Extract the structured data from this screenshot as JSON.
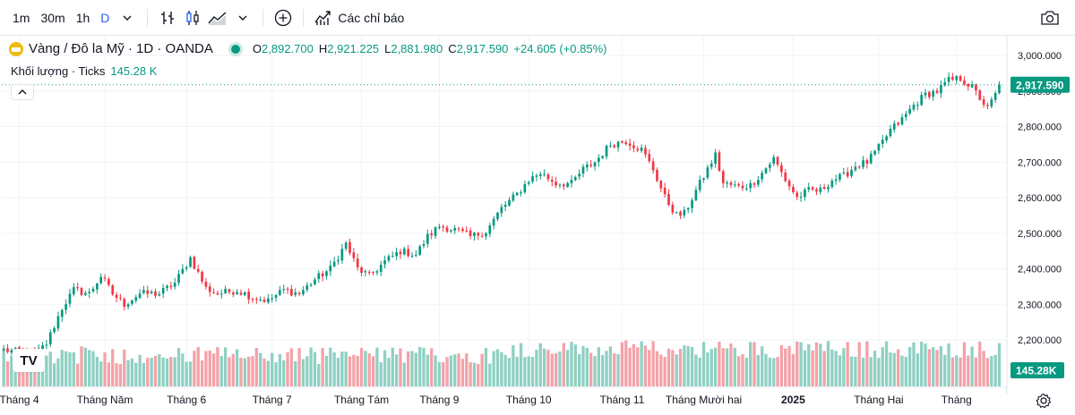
{
  "toolbar": {
    "intervals": [
      "1m",
      "30m",
      "1h",
      "D"
    ],
    "active_interval": "D",
    "indicators_label": "Các chỉ báo"
  },
  "legend": {
    "title": "Vàng / Đô la Mỹ · 1D · OANDA",
    "o_key": "O",
    "o_val": "2,892.700",
    "h_key": "H",
    "h_val": "2,921.225",
    "l_key": "L",
    "l_val": "2,881.980",
    "c_key": "C",
    "c_val": "2,917.590",
    "change": "+24.605 (+0.85%)",
    "volume_label": "Khối lượng · Ticks",
    "volume_value": "145.28 K"
  },
  "logo_text": "TV",
  "colors": {
    "up": "#089981",
    "down": "#f23645",
    "vol_up": "#8fd0c3",
    "vol_down": "#f3a2a8",
    "grid": "#f0f3fa",
    "last_badge": "#089981"
  },
  "chart_data": {
    "type": "candlestick",
    "y_ticks": [
      "3,000.000",
      "2,900.000",
      "2,800.000",
      "2,700.000",
      "2,600.000",
      "2,500.000",
      "2,400.000",
      "2,300.000",
      "2,200.000"
    ],
    "y_tick_values": [
      3000,
      2900,
      2800,
      2700,
      2600,
      2500,
      2400,
      2300,
      2200
    ],
    "x_labels": [
      "Tháng 4",
      "Tháng Năm",
      "Tháng 6",
      "Tháng 7",
      "Tháng Tám",
      "Tháng 9",
      "Tháng 10",
      "Tháng 11",
      "Tháng Mười hai",
      "2025",
      "Tháng Hai",
      "Tháng"
    ],
    "x_label_bold": [
      false,
      false,
      false,
      false,
      false,
      false,
      false,
      false,
      false,
      true,
      false,
      false
    ],
    "x_label_day_index": [
      4,
      26,
      47,
      69,
      92,
      112,
      135,
      159,
      180,
      203,
      225,
      245
    ],
    "last_price": 2917.59,
    "last_price_label": "2,917.590",
    "last_volume_label": "145.28K",
    "anchors": [
      [
        0,
        2172
      ],
      [
        8,
        2158
      ],
      [
        11,
        2190
      ],
      [
        15,
        2290
      ],
      [
        18,
        2340
      ],
      [
        22,
        2330
      ],
      [
        25,
        2380
      ],
      [
        28,
        2330
      ],
      [
        31,
        2300
      ],
      [
        35,
        2330
      ],
      [
        40,
        2330
      ],
      [
        44,
        2360
      ],
      [
        48,
        2430
      ],
      [
        52,
        2345
      ],
      [
        55,
        2330
      ],
      [
        60,
        2340
      ],
      [
        64,
        2320
      ],
      [
        68,
        2310
      ],
      [
        72,
        2340
      ],
      [
        76,
        2330
      ],
      [
        80,
        2370
      ],
      [
        84,
        2400
      ],
      [
        88,
        2470
      ],
      [
        91,
        2400
      ],
      [
        94,
        2380
      ],
      [
        98,
        2420
      ],
      [
        102,
        2450
      ],
      [
        106,
        2440
      ],
      [
        109,
        2490
      ],
      [
        112,
        2520
      ],
      [
        116,
        2510
      ],
      [
        120,
        2490
      ],
      [
        124,
        2505
      ],
      [
        128,
        2570
      ],
      [
        132,
        2610
      ],
      [
        135,
        2650
      ],
      [
        138,
        2670
      ],
      [
        142,
        2640
      ],
      [
        146,
        2640
      ],
      [
        149,
        2680
      ],
      [
        152,
        2700
      ],
      [
        156,
        2750
      ],
      [
        160,
        2760
      ],
      [
        164,
        2735
      ],
      [
        167,
        2680
      ],
      [
        170,
        2600
      ],
      [
        173,
        2550
      ],
      [
        175,
        2555
      ],
      [
        178,
        2620
      ],
      [
        181,
        2680
      ],
      [
        183,
        2720
      ],
      [
        185,
        2640
      ],
      [
        189,
        2630
      ],
      [
        192,
        2635
      ],
      [
        195,
        2670
      ],
      [
        198,
        2710
      ],
      [
        201,
        2650
      ],
      [
        204,
        2600
      ],
      [
        207,
        2620
      ],
      [
        210,
        2620
      ],
      [
        213,
        2650
      ],
      [
        216,
        2660
      ],
      [
        219,
        2690
      ],
      [
        222,
        2700
      ],
      [
        225,
        2740
      ],
      [
        228,
        2790
      ],
      [
        231,
        2820
      ],
      [
        234,
        2860
      ],
      [
        237,
        2890
      ],
      [
        240,
        2900
      ],
      [
        243,
        2930
      ],
      [
        246,
        2935
      ],
      [
        249,
        2910
      ],
      [
        251,
        2880
      ],
      [
        253,
        2850
      ],
      [
        255,
        2890
      ],
      [
        256,
        2917.59
      ]
    ],
    "volume_range": [
      60,
      230
    ]
  }
}
